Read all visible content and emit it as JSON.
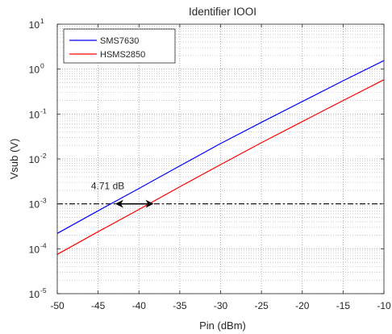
{
  "chart_data": {
    "type": "line",
    "title": "Identifier IOOI",
    "xlabel": "Pin (dBm)",
    "ylabel": "Vsub (V)",
    "xlim": [
      -50,
      -10
    ],
    "ylim": [
      1e-05,
      10
    ],
    "yscale": "log",
    "grid": "dotted major and minor",
    "legend_position": "top-left",
    "x_ticks": [
      -50,
      -45,
      -40,
      -35,
      -30,
      -25,
      -20,
      -15,
      -10
    ],
    "y_ticks": [
      {
        "base": "10",
        "exp": "-5",
        "value": 1e-05
      },
      {
        "base": "10",
        "exp": "-4",
        "value": 0.0001
      },
      {
        "base": "10",
        "exp": "-3",
        "value": 0.001
      },
      {
        "base": "10",
        "exp": "-2",
        "value": 0.01
      },
      {
        "base": "10",
        "exp": "-1",
        "value": 0.1
      },
      {
        "base": "10",
        "exp": "0",
        "value": 1
      },
      {
        "base": "10",
        "exp": "1",
        "value": 10
      }
    ],
    "series": [
      {
        "name": "SMS7630",
        "color": "#0000ff",
        "x": [
          -50,
          -45,
          -40,
          -35,
          -30,
          -25,
          -20,
          -15,
          -10
        ],
        "y": [
          0.00022,
          0.0007,
          0.0022,
          0.007,
          0.022,
          0.065,
          0.19,
          0.55,
          1.55
        ]
      },
      {
        "name": "HSMS2850",
        "color": "#ff0000",
        "x": [
          -50,
          -45,
          -40,
          -35,
          -30,
          -25,
          -20,
          -15,
          -10
        ],
        "y": [
          7.5e-05,
          0.00024,
          0.00075,
          0.0024,
          0.0075,
          0.023,
          0.068,
          0.2,
          0.58
        ]
      }
    ],
    "reference_line": {
      "y": 0.001,
      "style": "dash-dot",
      "color": "#000000"
    },
    "annotation": {
      "text": "4.71 dB",
      "arrow_from_x": -42.9,
      "arrow_to_x": -38.2,
      "y": 0.001
    }
  }
}
